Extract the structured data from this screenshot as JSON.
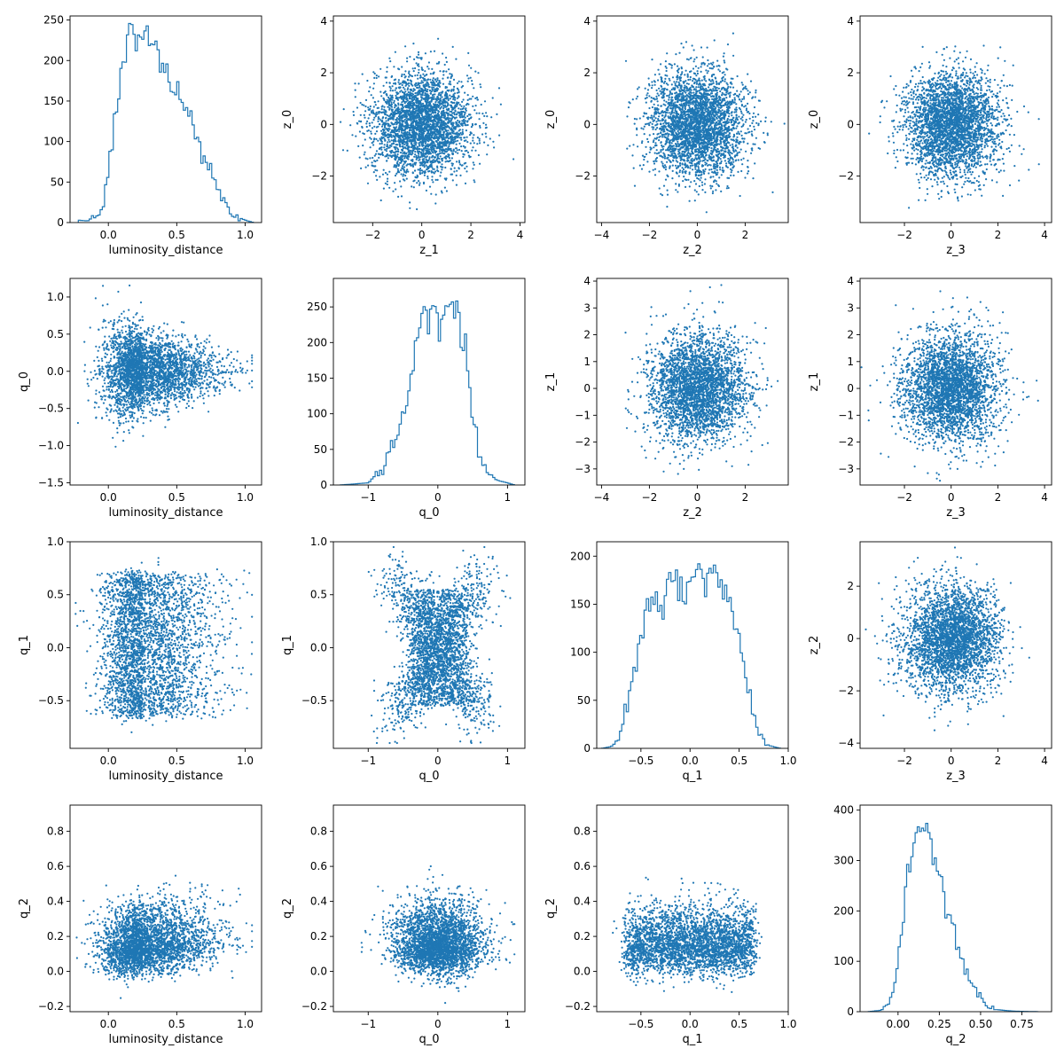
{
  "colors": {
    "accent": "#1f77b4",
    "axes": "#000000",
    "background": "#ffffff"
  },
  "chart_data": [
    {
      "row": 0,
      "col": 0,
      "type": "histogram",
      "xlabel": "luminosity_distance",
      "ylabel": "",
      "xlim": [
        -0.28,
        1.12
      ],
      "ylim": [
        0,
        255
      ],
      "xticks": [
        0.0,
        0.5,
        1.0
      ],
      "xtick_labels": [
        "0.0",
        "0.5",
        "1.0"
      ],
      "yticks": [
        0,
        50,
        100,
        150,
        200,
        250
      ],
      "ytick_labels": [
        "0",
        "50",
        "100",
        "150",
        "200",
        "250"
      ],
      "density_profile": [
        [
          -0.22,
          3
        ],
        [
          -0.15,
          2
        ],
        [
          -0.05,
          15
        ],
        [
          0.0,
          65
        ],
        [
          0.05,
          130
        ],
        [
          0.1,
          190
        ],
        [
          0.15,
          225
        ],
        [
          0.22,
          240
        ],
        [
          0.3,
          225
        ],
        [
          0.4,
          195
        ],
        [
          0.5,
          160
        ],
        [
          0.6,
          125
        ],
        [
          0.7,
          85
        ],
        [
          0.8,
          40
        ],
        [
          0.9,
          10
        ],
        [
          1.0,
          3
        ],
        [
          1.06,
          0
        ]
      ]
    },
    {
      "row": 0,
      "col": 1,
      "type": "scatter",
      "xlabel": "z_1",
      "ylabel": "z_0",
      "xlim": [
        -3.6,
        4.2
      ],
      "ylim": [
        -3.8,
        4.2
      ],
      "xticks": [
        -2,
        0,
        2,
        4
      ],
      "xtick_labels": [
        "−2",
        "0",
        "2",
        "4"
      ],
      "yticks": [
        -2,
        0,
        2,
        4
      ],
      "ytick_labels": [
        "−2",
        "0",
        "2",
        "4"
      ],
      "x_dist": {
        "kind": "normal",
        "mean": 0,
        "sd": 1
      },
      "y_dist": {
        "kind": "normal",
        "mean": 0,
        "sd": 1
      },
      "correlation": 0
    },
    {
      "row": 0,
      "col": 2,
      "type": "scatter",
      "xlabel": "z_2",
      "ylabel": "z_0",
      "xlim": [
        -4.2,
        3.8
      ],
      "ylim": [
        -3.8,
        4.2
      ],
      "xticks": [
        -4,
        -2,
        0,
        2
      ],
      "xtick_labels": [
        "−4",
        "−2",
        "0",
        "2"
      ],
      "yticks": [
        -2,
        0,
        2,
        4
      ],
      "ytick_labels": [
        "−2",
        "0",
        "2",
        "4"
      ],
      "x_dist": {
        "kind": "normal",
        "mean": 0,
        "sd": 1
      },
      "y_dist": {
        "kind": "normal",
        "mean": 0,
        "sd": 1
      },
      "correlation": 0
    },
    {
      "row": 0,
      "col": 3,
      "type": "scatter",
      "xlabel": "z_3",
      "ylabel": "z_0",
      "xlim": [
        -3.9,
        4.3
      ],
      "ylim": [
        -3.8,
        4.2
      ],
      "xticks": [
        -2,
        0,
        2,
        4
      ],
      "xtick_labels": [
        "−2",
        "0",
        "2",
        "4"
      ],
      "yticks": [
        -2,
        0,
        2,
        4
      ],
      "ytick_labels": [
        "−2",
        "0",
        "2",
        "4"
      ],
      "x_dist": {
        "kind": "normal",
        "mean": 0,
        "sd": 1
      },
      "y_dist": {
        "kind": "normal",
        "mean": 0,
        "sd": 1
      },
      "correlation": 0
    },
    {
      "row": 1,
      "col": 0,
      "type": "scatter",
      "xlabel": "luminosity_distance",
      "ylabel": "q_0",
      "xlim": [
        -0.28,
        1.12
      ],
      "ylim": [
        -1.53,
        1.25
      ],
      "xticks": [
        0.0,
        0.5,
        1.0
      ],
      "xtick_labels": [
        "0.0",
        "0.5",
        "1.0"
      ],
      "yticks": [
        -1.5,
        -1.0,
        -0.5,
        0.0,
        0.5,
        1.0
      ],
      "ytick_labels": [
        "−1.5",
        "−1.0",
        "−0.5",
        "0.0",
        "0.5",
        "1.0"
      ],
      "x_dist": {
        "kind": "skewed",
        "mode": 0.25,
        "left_sd": 0.14,
        "right_sd": 0.27,
        "min": -0.25,
        "max": 1.05
      },
      "y_dist": {
        "kind": "triangular_band",
        "center": 0,
        "half_width_at_x0": 0.6,
        "half_width_at_x1": 0.2
      },
      "correlation": 0
    },
    {
      "row": 1,
      "col": 1,
      "type": "histogram",
      "xlabel": "q_0",
      "ylabel": "",
      "xlim": [
        -1.5,
        1.25
      ],
      "ylim": [
        0,
        290
      ],
      "xticks": [
        -1,
        0,
        1
      ],
      "xtick_labels": [
        "−1",
        "0",
        "1"
      ],
      "yticks": [
        0,
        50,
        100,
        150,
        200,
        250
      ],
      "ytick_labels": [
        "0",
        "50",
        "100",
        "150",
        "200",
        "250"
      ],
      "density_profile": [
        [
          -1.4,
          0
        ],
        [
          -1.0,
          3
        ],
        [
          -0.8,
          20
        ],
        [
          -0.6,
          70
        ],
        [
          -0.4,
          140
        ],
        [
          -0.3,
          200
        ],
        [
          -0.2,
          240
        ],
        [
          -0.1,
          250
        ],
        [
          0.0,
          245
        ],
        [
          0.1,
          250
        ],
        [
          0.2,
          255
        ],
        [
          0.3,
          240
        ],
        [
          0.4,
          185
        ],
        [
          0.5,
          100
        ],
        [
          0.6,
          35
        ],
        [
          0.8,
          8
        ],
        [
          1.0,
          3
        ],
        [
          1.1,
          0
        ]
      ]
    },
    {
      "row": 1,
      "col": 2,
      "type": "scatter",
      "xlabel": "z_2",
      "ylabel": "z_1",
      "xlim": [
        -4.2,
        3.8
      ],
      "ylim": [
        -3.6,
        4.1
      ],
      "xticks": [
        -4,
        -2,
        0,
        2
      ],
      "xtick_labels": [
        "−4",
        "−2",
        "0",
        "2"
      ],
      "yticks": [
        -3,
        -2,
        -1,
        0,
        1,
        2,
        3,
        4
      ],
      "ytick_labels": [
        "−3",
        "−2",
        "−1",
        "0",
        "1",
        "2",
        "3",
        "4"
      ],
      "x_dist": {
        "kind": "normal",
        "mean": 0,
        "sd": 1
      },
      "y_dist": {
        "kind": "normal",
        "mean": 0,
        "sd": 1
      },
      "correlation": 0
    },
    {
      "row": 1,
      "col": 3,
      "type": "scatter",
      "xlabel": "z_3",
      "ylabel": "z_1",
      "xlim": [
        -3.9,
        4.3
      ],
      "ylim": [
        -3.6,
        4.1
      ],
      "xticks": [
        -2,
        0,
        2,
        4
      ],
      "xtick_labels": [
        "−2",
        "0",
        "2",
        "4"
      ],
      "yticks": [
        -3,
        -2,
        -1,
        0,
        1,
        2,
        3,
        4
      ],
      "ytick_labels": [
        "−3",
        "−2",
        "−1",
        "0",
        "1",
        "2",
        "3",
        "4"
      ],
      "x_dist": {
        "kind": "normal",
        "mean": 0,
        "sd": 1
      },
      "y_dist": {
        "kind": "normal",
        "mean": 0,
        "sd": 1
      },
      "correlation": 0
    },
    {
      "row": 2,
      "col": 0,
      "type": "scatter",
      "xlabel": "luminosity_distance",
      "ylabel": "q_1",
      "xlim": [
        -0.28,
        1.12
      ],
      "ylim": [
        -0.95,
        1.0
      ],
      "xticks": [
        0.0,
        0.5,
        1.0
      ],
      "xtick_labels": [
        "0.0",
        "0.5",
        "1.0"
      ],
      "yticks": [
        -0.5,
        0.0,
        0.5,
        1.0
      ],
      "ytick_labels": [
        "−0.5",
        "0.0",
        "0.5",
        "1.0"
      ],
      "x_dist": {
        "kind": "skewed",
        "mode": 0.25,
        "left_sd": 0.14,
        "right_sd": 0.27,
        "min": -0.25,
        "max": 1.05
      },
      "y_dist": {
        "kind": "uniform_band",
        "min": -0.65,
        "max": 0.7
      },
      "correlation": 0
    },
    {
      "row": 2,
      "col": 1,
      "type": "scatter",
      "xlabel": "q_0",
      "ylabel": "q_1",
      "xlim": [
        -1.5,
        1.25
      ],
      "ylim": [
        -0.95,
        1.0
      ],
      "xticks": [
        -1,
        0,
        1
      ],
      "xtick_labels": [
        "−1",
        "0",
        "1"
      ],
      "yticks": [
        -0.5,
        0.0,
        0.5,
        1.0
      ],
      "ytick_labels": [
        "−0.5",
        "0.0",
        "0.5",
        "1.0"
      ],
      "x_dist": {
        "kind": "x_shape",
        "half_range": 0.65
      },
      "y_dist": {
        "kind": "x_shape",
        "half_range": 0.65
      },
      "correlation": 0
    },
    {
      "row": 2,
      "col": 2,
      "type": "histogram",
      "xlabel": "q_1",
      "ylabel": "",
      "xlim": [
        -0.95,
        1.0
      ],
      "ylim": [
        0,
        215
      ],
      "xticks": [
        -0.5,
        0.0,
        0.5,
        1.0
      ],
      "xtick_labels": [
        "−0.5",
        "0.0",
        "0.5",
        "1.0"
      ],
      "yticks": [
        0,
        50,
        100,
        150,
        200
      ],
      "ytick_labels": [
        "0",
        "50",
        "100",
        "150",
        "200"
      ],
      "density_profile": [
        [
          -0.9,
          0
        ],
        [
          -0.8,
          2
        ],
        [
          -0.7,
          15
        ],
        [
          -0.6,
          60
        ],
        [
          -0.5,
          120
        ],
        [
          -0.4,
          145
        ],
        [
          -0.3,
          155
        ],
        [
          -0.2,
          165
        ],
        [
          -0.1,
          170
        ],
        [
          0.0,
          180
        ],
        [
          0.1,
          185
        ],
        [
          0.2,
          185
        ],
        [
          0.3,
          175
        ],
        [
          0.4,
          150
        ],
        [
          0.5,
          110
        ],
        [
          0.6,
          55
        ],
        [
          0.7,
          15
        ],
        [
          0.8,
          3
        ],
        [
          0.92,
          0
        ]
      ]
    },
    {
      "row": 2,
      "col": 3,
      "type": "scatter",
      "xlabel": "z_3",
      "ylabel": "z_2",
      "xlim": [
        -3.9,
        4.3
      ],
      "ylim": [
        -4.2,
        3.7
      ],
      "xticks": [
        -2,
        0,
        2,
        4
      ],
      "xtick_labels": [
        "−2",
        "0",
        "2",
        "4"
      ],
      "yticks": [
        -4,
        -2,
        0,
        2
      ],
      "ytick_labels": [
        "−4",
        "−2",
        "0",
        "2"
      ],
      "x_dist": {
        "kind": "normal",
        "mean": 0,
        "sd": 1
      },
      "y_dist": {
        "kind": "normal",
        "mean": 0,
        "sd": 1
      },
      "correlation": 0
    },
    {
      "row": 3,
      "col": 0,
      "type": "scatter",
      "xlabel": "luminosity_distance",
      "ylabel": "q_2",
      "xlim": [
        -0.28,
        1.12
      ],
      "ylim": [
        -0.23,
        0.95
      ],
      "xticks": [
        0.0,
        0.5,
        1.0
      ],
      "xtick_labels": [
        "0.0",
        "0.5",
        "1.0"
      ],
      "yticks": [
        -0.2,
        0.0,
        0.2,
        0.4,
        0.6,
        0.8
      ],
      "ytick_labels": [
        "−0.2",
        "0.0",
        "0.2",
        "0.4",
        "0.6",
        "0.8"
      ],
      "x_dist": {
        "kind": "skewed",
        "mode": 0.25,
        "left_sd": 0.14,
        "right_sd": 0.27,
        "min": -0.25,
        "max": 1.05
      },
      "y_dist": {
        "kind": "skewed",
        "mode": 0.15,
        "left_sd": 0.08,
        "right_sd": 0.12,
        "min": -0.18,
        "max": 0.9
      },
      "correlation": 0.25
    },
    {
      "row": 3,
      "col": 1,
      "type": "scatter",
      "xlabel": "q_0",
      "ylabel": "q_2",
      "xlim": [
        -1.5,
        1.25
      ],
      "ylim": [
        -0.23,
        0.95
      ],
      "xticks": [
        -1,
        0,
        1
      ],
      "xtick_labels": [
        "−1",
        "0",
        "1"
      ],
      "yticks": [
        -0.2,
        0.0,
        0.2,
        0.4,
        0.6,
        0.8
      ],
      "ytick_labels": [
        "−0.2",
        "0.0",
        "0.2",
        "0.4",
        "0.6",
        "0.8"
      ],
      "x_dist": {
        "kind": "normal",
        "mean": 0,
        "sd": 0.32,
        "min": -1.4,
        "max": 1.1
      },
      "y_dist": {
        "kind": "skewed",
        "mode": 0.15,
        "left_sd": 0.08,
        "right_sd": 0.12,
        "min": -0.18,
        "max": 0.9
      },
      "correlation": 0
    },
    {
      "row": 3,
      "col": 2,
      "type": "scatter",
      "xlabel": "q_1",
      "ylabel": "q_2",
      "xlim": [
        -0.95,
        1.0
      ],
      "ylim": [
        -0.23,
        0.95
      ],
      "xticks": [
        -0.5,
        0.0,
        0.5,
        1.0
      ],
      "xtick_labels": [
        "−0.5",
        "0.0",
        "0.5",
        "1.0"
      ],
      "yticks": [
        -0.2,
        0.0,
        0.2,
        0.4,
        0.6,
        0.8
      ],
      "ytick_labels": [
        "−0.2",
        "0.0",
        "0.2",
        "0.4",
        "0.6",
        "0.8"
      ],
      "x_dist": {
        "kind": "uniform_band",
        "min": -0.65,
        "max": 0.65
      },
      "y_dist": {
        "kind": "skewed",
        "mode": 0.15,
        "left_sd": 0.08,
        "right_sd": 0.12,
        "min": -0.18,
        "max": 0.9
      },
      "correlation": 0
    },
    {
      "row": 3,
      "col": 3,
      "type": "histogram",
      "xlabel": "q_2",
      "ylabel": "",
      "xlim": [
        -0.23,
        0.93
      ],
      "ylim": [
        0,
        410
      ],
      "xticks": [
        0.0,
        0.25,
        0.5,
        0.75
      ],
      "xtick_labels": [
        "0.00",
        "0.25",
        "0.50",
        "0.75"
      ],
      "yticks": [
        0,
        100,
        200,
        300,
        400
      ],
      "ytick_labels": [
        "0",
        "100",
        "200",
        "300",
        "400"
      ],
      "density_profile": [
        [
          -0.18,
          0
        ],
        [
          -0.1,
          3
        ],
        [
          -0.05,
          20
        ],
        [
          0.0,
          90
        ],
        [
          0.05,
          250
        ],
        [
          0.1,
          350
        ],
        [
          0.13,
          380
        ],
        [
          0.17,
          370
        ],
        [
          0.2,
          330
        ],
        [
          0.25,
          270
        ],
        [
          0.3,
          200
        ],
        [
          0.35,
          140
        ],
        [
          0.4,
          90
        ],
        [
          0.45,
          50
        ],
        [
          0.5,
          25
        ],
        [
          0.55,
          10
        ],
        [
          0.6,
          4
        ],
        [
          0.7,
          1
        ],
        [
          0.85,
          0
        ]
      ]
    }
  ]
}
